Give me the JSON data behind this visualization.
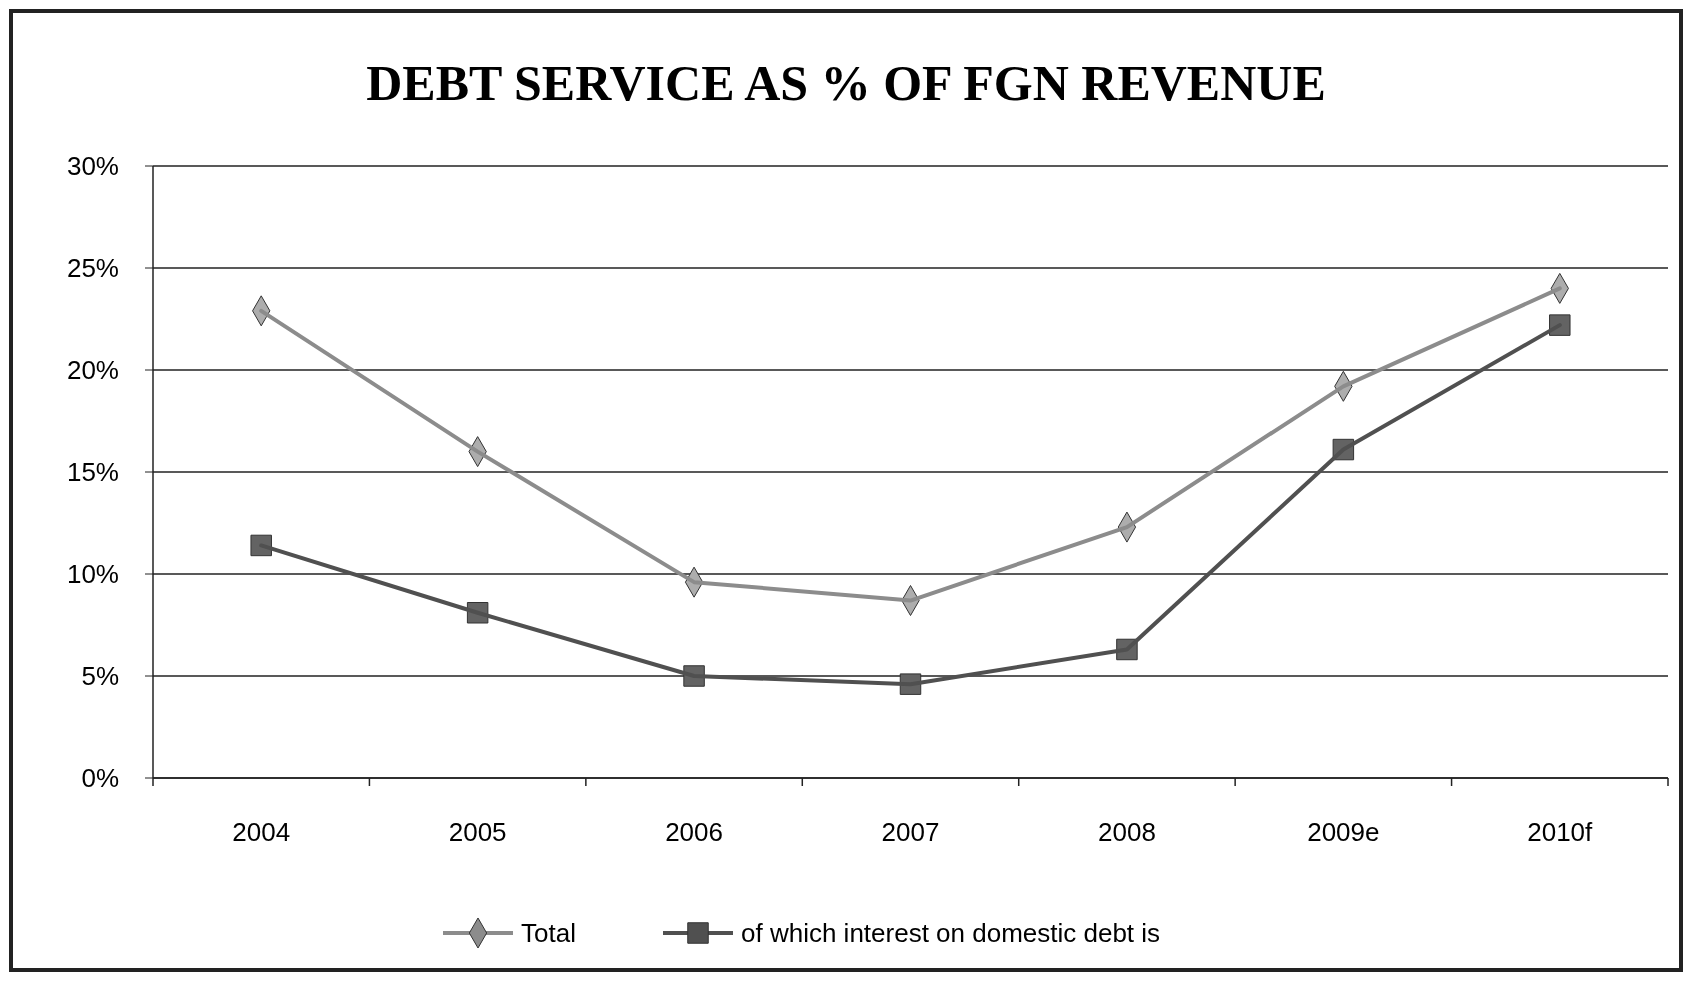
{
  "chart_data": {
    "type": "line",
    "title": "DEBT SERVICE AS % OF FGN REVENUE",
    "categories": [
      "2004",
      "2005",
      "2006",
      "2007",
      "2008",
      "2009e",
      "2010f"
    ],
    "series": [
      {
        "name": "Total",
        "color": "#8c8c8c",
        "marker": "diamond",
        "values": [
          22.9,
          16.0,
          9.6,
          8.7,
          12.3,
          19.2,
          24.0
        ]
      },
      {
        "name": "of which interest on domestic debt is",
        "color": "#505050",
        "marker": "square",
        "values": [
          11.4,
          8.1,
          5.0,
          4.6,
          6.3,
          16.1,
          22.2
        ]
      }
    ],
    "ylim": [
      0,
      30
    ],
    "yticks": [
      {
        "value": 0,
        "label": "0%"
      },
      {
        "value": 5,
        "label": "5%"
      },
      {
        "value": 10,
        "label": "10%"
      },
      {
        "value": 15,
        "label": "15%"
      },
      {
        "value": 20,
        "label": "20%"
      },
      {
        "value": 25,
        "label": "25%"
      },
      {
        "value": 30,
        "label": "30%"
      }
    ],
    "grid": "y",
    "legend": "bottom"
  }
}
